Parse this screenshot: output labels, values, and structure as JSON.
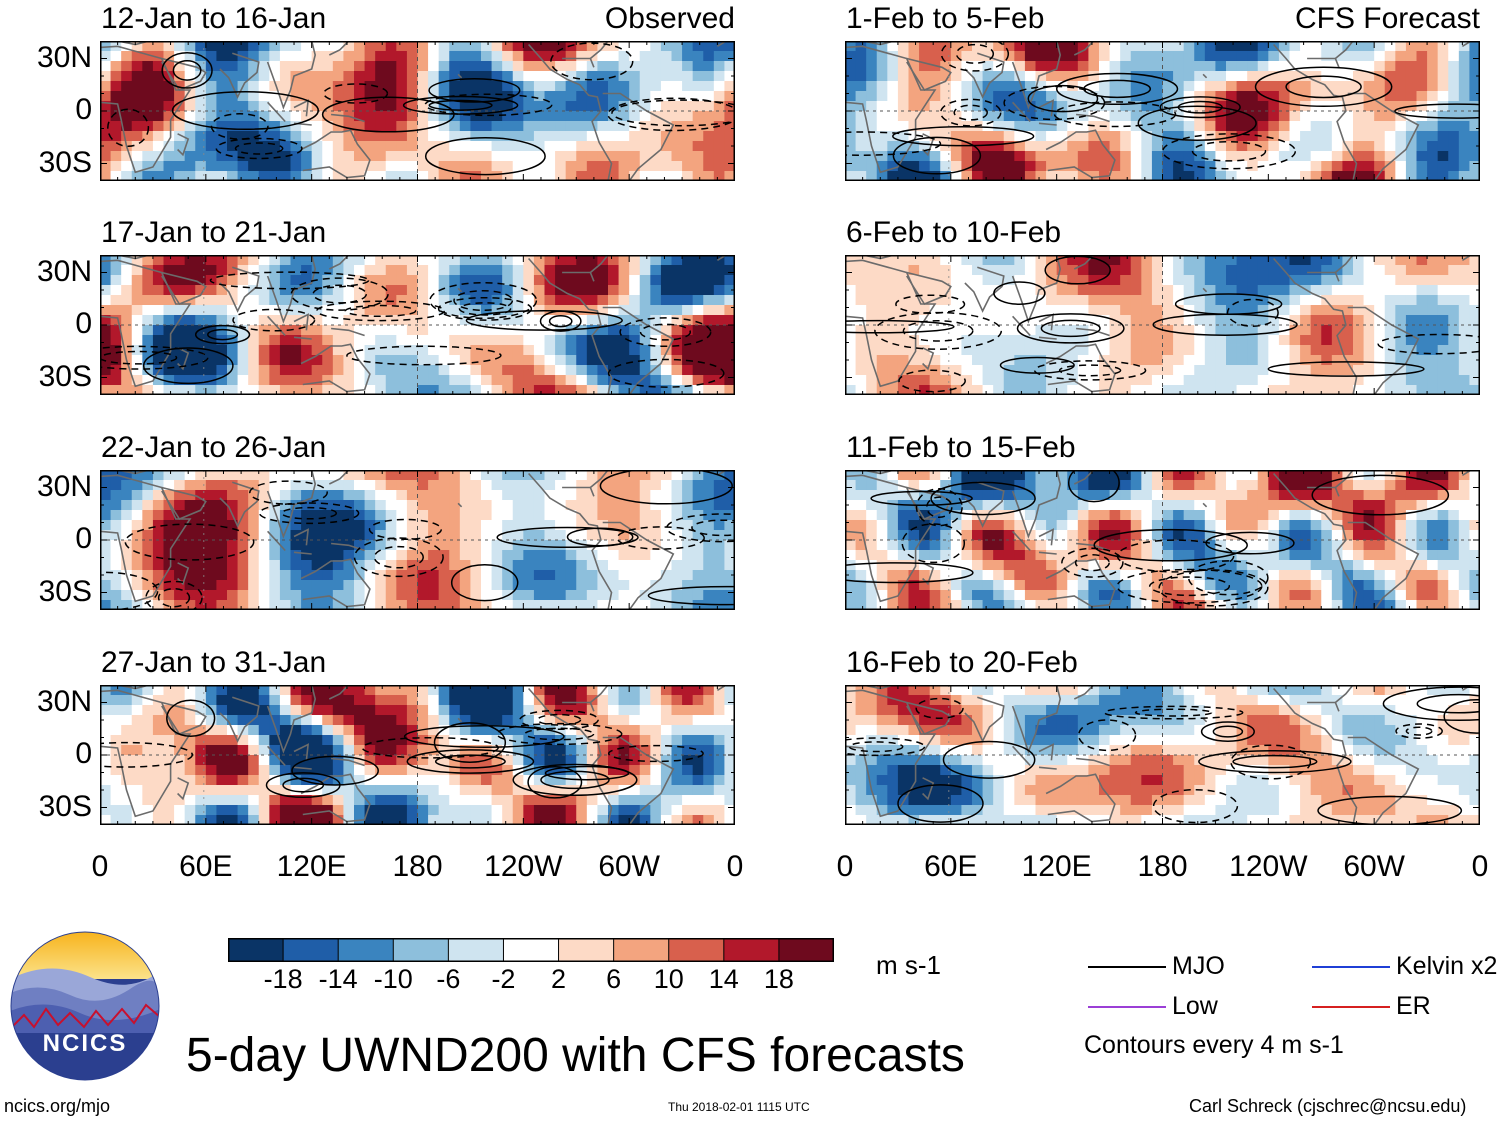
{
  "chart_data": {
    "type": "heatmap",
    "title": "5-day UWND200 with CFS forecasts",
    "units": "m s-1",
    "contour_note": "Contours every 4 m s-1",
    "columns": [
      {
        "tag": "Observed",
        "panels": [
          "12-Jan to 16-Jan",
          "17-Jan to 21-Jan",
          "22-Jan to 26-Jan",
          "27-Jan to 31-Jan"
        ]
      },
      {
        "tag": "CFS Forecast",
        "panels": [
          "1-Feb to 5-Feb",
          "6-Feb to 10-Feb",
          "11-Feb to 15-Feb",
          "16-Feb to 20-Feb"
        ]
      }
    ],
    "lat_ticks": [
      "30N",
      "0",
      "30S"
    ],
    "lon_ticks": [
      "0",
      "60E",
      "120E",
      "180",
      "120W",
      "60W",
      "0"
    ],
    "lat_range": [
      -40,
      40
    ],
    "lon_range": [
      0,
      360
    ],
    "colorbar": {
      "tick_labels": [
        "-18",
        "-14",
        "-10",
        "-6",
        "-2",
        "2",
        "6",
        "10",
        "14",
        "18"
      ],
      "colors": [
        "#0a3466",
        "#1f5ea8",
        "#3a84bf",
        "#8dbfdc",
        "#cfe4f0",
        "#ffffff",
        "#fddac6",
        "#f3a47f",
        "#d8604d",
        "#b2182b",
        "#6e0a1e"
      ]
    },
    "legend": [
      {
        "label": "MJO",
        "color": "#000000"
      },
      {
        "label": "Kelvin x2",
        "color": "#1f3fd6"
      },
      {
        "label": "Low",
        "color": "#9b3fd6"
      },
      {
        "label": "ER",
        "color": "#d62020"
      }
    ]
  },
  "logo": {
    "text": "NCICS"
  },
  "footer": {
    "url": "ncics.org/mjo",
    "timestamp": "Thu 2018-02-01 1115 UTC",
    "author": "Carl Schreck (cjschrec@ncsu.edu)"
  }
}
